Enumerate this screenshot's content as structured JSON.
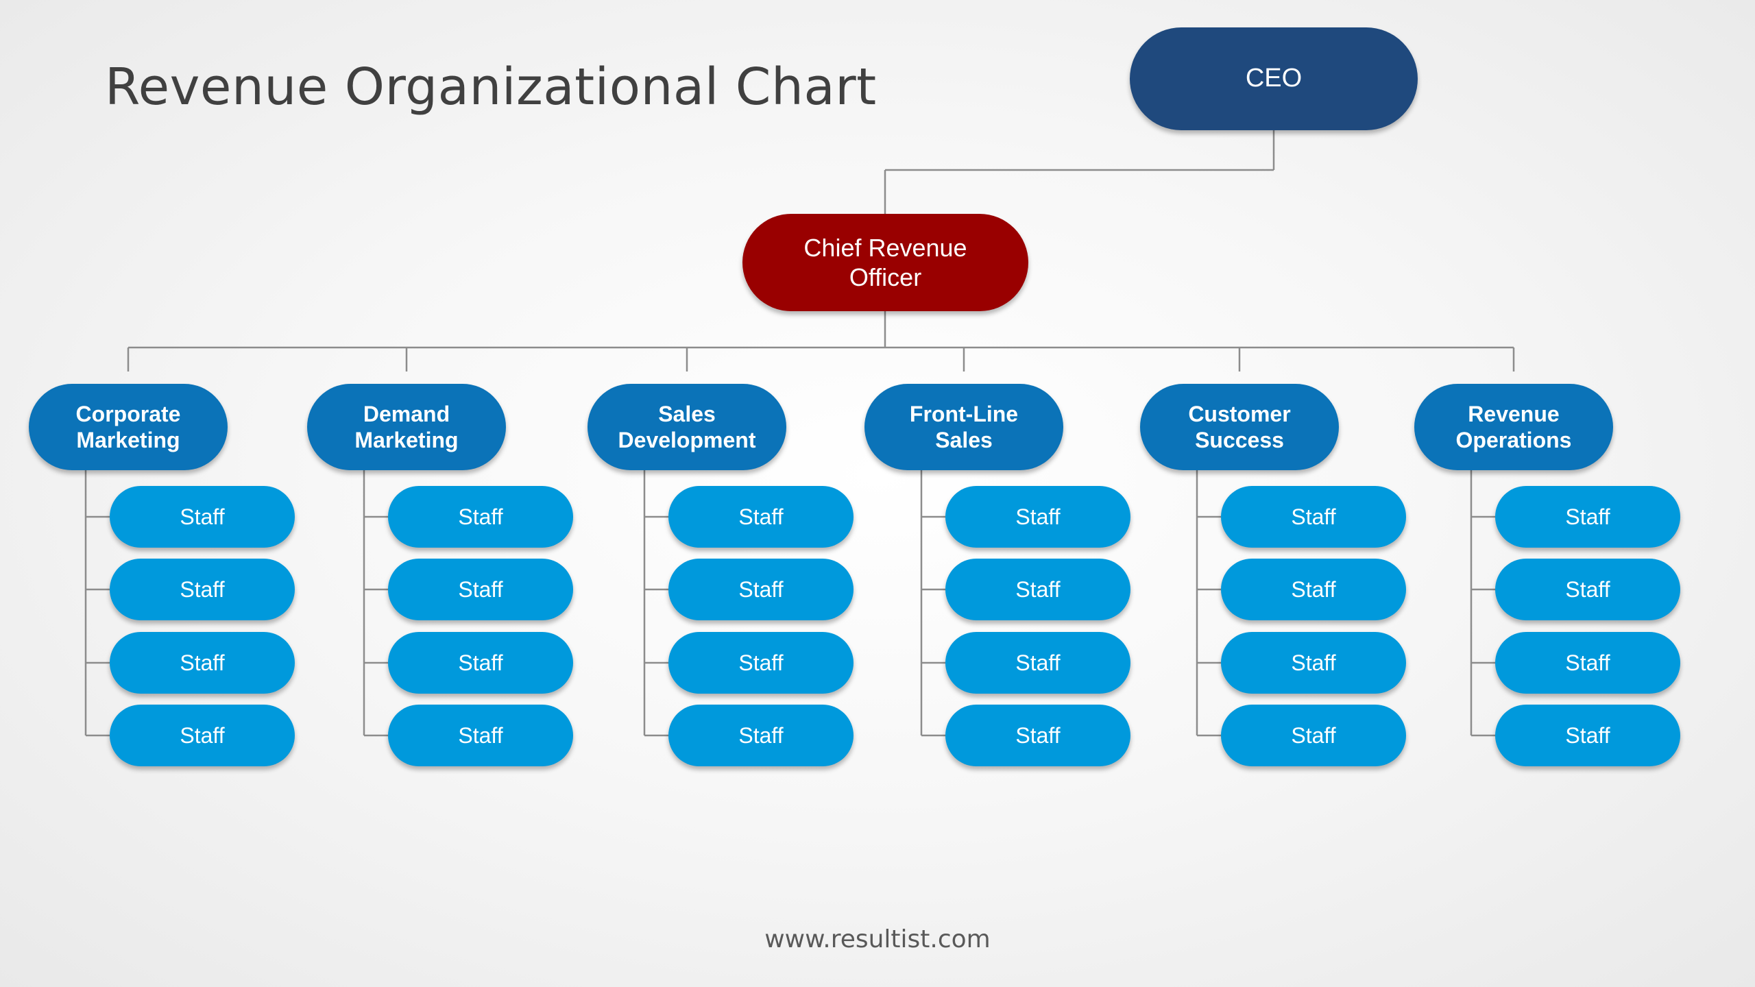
{
  "slide": {
    "title": "Revenue Organizational Chart",
    "footer": "www.resultist.com"
  },
  "org": {
    "ceo": "CEO",
    "cro": "Chief Revenue Officer",
    "departments": [
      {
        "name": "Corporate Marketing",
        "staff": [
          "Staff",
          "Staff",
          "Staff",
          "Staff"
        ]
      },
      {
        "name": "Demand Marketing",
        "staff": [
          "Staff",
          "Staff",
          "Staff",
          "Staff"
        ]
      },
      {
        "name": "Sales Development",
        "staff": [
          "Staff",
          "Staff",
          "Staff",
          "Staff"
        ]
      },
      {
        "name": "Front-Line Sales",
        "staff": [
          "Staff",
          "Staff",
          "Staff",
          "Staff"
        ]
      },
      {
        "name": "Customer Success",
        "staff": [
          "Staff",
          "Staff",
          "Staff",
          "Staff"
        ]
      },
      {
        "name": "Revenue Operations",
        "staff": [
          "Staff",
          "Staff",
          "Staff",
          "Staff"
        ]
      }
    ]
  },
  "colors": {
    "ceo": "#1f497d",
    "cro": "#990000",
    "department": "#0b73b8",
    "staff": "#0099dc",
    "connector": "#8c8c8c",
    "title": "#404040"
  }
}
